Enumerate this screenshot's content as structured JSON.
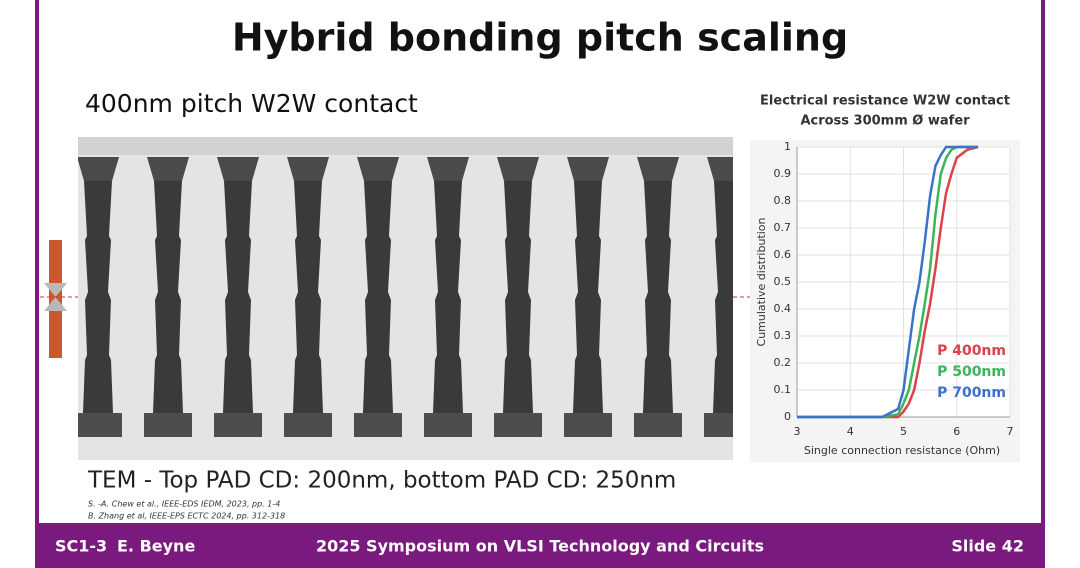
{
  "slide": {
    "title": "Hybrid bonding pitch scaling",
    "subtitle": "400nm pitch W2W contact",
    "caption": "TEM - Top PAD CD: 200nm, bottom PAD CD: 250nm",
    "references": [
      "S. -A. Chew et al., IEEE-EDS IEDM, 2023, pp. 1-4",
      "B. Zhang et al, IEEE-EPS ECTC 2024, pp. 312-318"
    ],
    "footer": {
      "session": "SC1-3",
      "author": "E. Beyne",
      "event": "2025 Symposium on VLSI Technology and Circuits",
      "slide": "Slide 42"
    }
  },
  "chart_data": {
    "type": "line",
    "title": "Electrical resistance W2W contact",
    "subtitle": "Across 300mm Ø wafer",
    "x_label": "Single connection resistance (Ohm)",
    "y_label": "Cumulative distribution",
    "x": [
      3,
      4.6,
      4.9,
      5.0,
      5.1,
      5.2,
      5.3,
      5.4,
      5.5,
      5.6,
      5.7,
      5.8,
      5.9,
      6.0,
      6.2,
      6.4
    ],
    "series": [
      {
        "name": "P 400nm",
        "color": "#d9434a",
        "values": [
          0,
          0,
          0,
          0.02,
          0.05,
          0.1,
          0.2,
          0.32,
          0.42,
          0.55,
          0.7,
          0.83,
          0.9,
          0.96,
          0.99,
          1
        ]
      },
      {
        "name": "P 500nm",
        "color": "#3cb55a",
        "values": [
          0,
          0,
          0.01,
          0.05,
          0.1,
          0.2,
          0.3,
          0.42,
          0.55,
          0.75,
          0.9,
          0.96,
          0.99,
          1,
          1,
          1
        ]
      },
      {
        "name": "P 700nm",
        "color": "#3a73c8",
        "values": [
          0,
          0,
          0.03,
          0.1,
          0.25,
          0.4,
          0.5,
          0.65,
          0.82,
          0.93,
          0.97,
          1,
          1,
          1,
          1,
          1
        ]
      }
    ],
    "xlim": [
      3,
      7
    ],
    "xticks": [
      3,
      4,
      5,
      6,
      7
    ],
    "ylim": [
      0,
      1
    ],
    "yticks": [
      0,
      0.1,
      0.2,
      0.3,
      0.4,
      0.5,
      0.6,
      0.7,
      0.8,
      0.9,
      1
    ],
    "grid": true,
    "legend": "lower right"
  }
}
